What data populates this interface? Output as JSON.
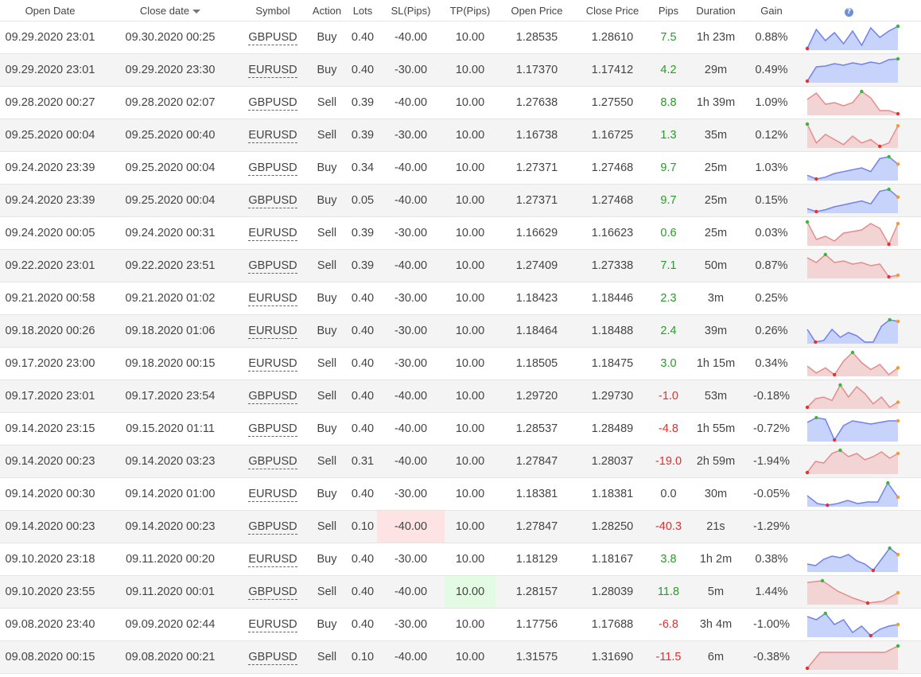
{
  "columns": {
    "open_date": "Open Date",
    "close_date": "Close date",
    "symbol": "Symbol",
    "action": "Action",
    "lots": "Lots",
    "sl": "SL(Pips)",
    "tp": "TP(Pips)",
    "open_price": "Open Price",
    "close_price": "Close Price",
    "pips": "Pips",
    "duration": "Duration",
    "gain": "Gain",
    "help_icon_text": "?"
  },
  "colors": {
    "buy_fill": "#c8d3fb",
    "buy_line": "#6f82ee",
    "sell_fill": "#f2d4d4",
    "sell_line": "#e58c8c",
    "marker_low": "#e83030",
    "marker_high": "#38b838",
    "marker_last": "#f39c2b"
  },
  "rows": [
    {
      "open_date": "09.29.2020 23:01",
      "close_date": "09.30.2020 00:25",
      "symbol": "GBPUSD",
      "action": "Buy",
      "lots": "0.40",
      "sl": "-40.00",
      "tp": "10.00",
      "open_price": "1.28535",
      "close_price": "1.28610",
      "pips": "7.5",
      "duration": "1h 23m",
      "gain": "0.88%",
      "spark": [
        2,
        26,
        12,
        22,
        8,
        24,
        6,
        28,
        16,
        24,
        30
      ]
    },
    {
      "open_date": "09.29.2020 23:01",
      "close_date": "09.29.2020 23:30",
      "symbol": "EURUSD",
      "action": "Buy",
      "lots": "0.40",
      "sl": "-30.00",
      "tp": "10.00",
      "open_price": "1.17370",
      "close_price": "1.17412",
      "pips": "4.2",
      "duration": "29m",
      "gain": "0.49%",
      "spark": [
        2,
        20,
        21,
        24,
        22,
        25,
        23,
        26,
        24,
        29,
        30
      ]
    },
    {
      "open_date": "09.28.2020 00:27",
      "close_date": "09.28.2020 02:07",
      "symbol": "GBPUSD",
      "action": "Sell",
      "lots": "0.39",
      "sl": "-40.00",
      "tp": "10.00",
      "open_price": "1.27638",
      "close_price": "1.27550",
      "pips": "8.8",
      "duration": "1h 39m",
      "gain": "1.09%",
      "spark": [
        20,
        28,
        14,
        16,
        12,
        16,
        30,
        22,
        6,
        6,
        2
      ]
    },
    {
      "open_date": "09.25.2020 00:04",
      "close_date": "09.25.2020 00:40",
      "symbol": "EURUSD",
      "action": "Sell",
      "lots": "0.39",
      "sl": "-30.00",
      "tp": "10.00",
      "open_price": "1.16738",
      "close_price": "1.16725",
      "pips": "1.3",
      "duration": "35m",
      "gain": "0.12%",
      "spark": [
        30,
        8,
        18,
        12,
        6,
        16,
        8,
        12,
        4,
        8,
        28
      ]
    },
    {
      "open_date": "09.24.2020 23:39",
      "close_date": "09.25.2020 00:04",
      "symbol": "GBPUSD",
      "action": "Buy",
      "lots": "0.34",
      "sl": "-40.00",
      "tp": "10.00",
      "open_price": "1.27371",
      "close_price": "1.27468",
      "pips": "9.7",
      "duration": "25m",
      "gain": "1.03%",
      "spark": [
        10,
        6,
        8,
        12,
        14,
        16,
        18,
        14,
        28,
        30,
        22
      ]
    },
    {
      "open_date": "09.24.2020 23:39",
      "close_date": "09.25.2020 00:04",
      "symbol": "GBPUSD",
      "action": "Buy",
      "lots": "0.05",
      "sl": "-40.00",
      "tp": "10.00",
      "open_price": "1.27371",
      "close_price": "1.27468",
      "pips": "9.7",
      "duration": "25m",
      "gain": "0.15%",
      "spark": [
        8,
        5,
        7,
        10,
        12,
        14,
        16,
        13,
        26,
        28,
        20
      ]
    },
    {
      "open_date": "09.24.2020 00:05",
      "close_date": "09.24.2020 00:31",
      "symbol": "EURUSD",
      "action": "Sell",
      "lots": "0.39",
      "sl": "-30.00",
      "tp": "10.00",
      "open_price": "1.16629",
      "close_price": "1.16623",
      "pips": "0.6",
      "duration": "25m",
      "gain": "0.03%",
      "spark": [
        30,
        8,
        12,
        6,
        16,
        18,
        20,
        28,
        22,
        2,
        28
      ]
    },
    {
      "open_date": "09.22.2020 23:01",
      "close_date": "09.22.2020 23:51",
      "symbol": "GBPUSD",
      "action": "Sell",
      "lots": "0.39",
      "sl": "-40.00",
      "tp": "10.00",
      "open_price": "1.27409",
      "close_price": "1.27338",
      "pips": "7.1",
      "duration": "50m",
      "gain": "0.87%",
      "spark": [
        26,
        20,
        30,
        20,
        22,
        18,
        20,
        16,
        18,
        2,
        4
      ]
    },
    {
      "open_date": "09.21.2020 00:58",
      "close_date": "09.21.2020 01:02",
      "symbol": "EURUSD",
      "action": "Buy",
      "lots": "0.40",
      "sl": "-30.00",
      "tp": "10.00",
      "open_price": "1.18423",
      "close_price": "1.18446",
      "pips": "2.3",
      "duration": "3m",
      "gain": "0.25%",
      "spark": []
    },
    {
      "open_date": "09.18.2020 00:26",
      "close_date": "09.18.2020 01:06",
      "symbol": "EURUSD",
      "action": "Buy",
      "lots": "0.40",
      "sl": "-30.00",
      "tp": "10.00",
      "open_price": "1.18464",
      "close_price": "1.18488",
      "pips": "2.4",
      "duration": "39m",
      "gain": "0.26%",
      "spark": [
        18,
        2,
        4,
        18,
        8,
        14,
        10,
        2,
        2,
        22,
        30,
        28
      ]
    },
    {
      "open_date": "09.17.2020 23:00",
      "close_date": "09.18.2020 00:15",
      "symbol": "EURUSD",
      "action": "Sell",
      "lots": "0.40",
      "sl": "-30.00",
      "tp": "10.00",
      "open_price": "1.18505",
      "close_price": "1.18475",
      "pips": "3.0",
      "duration": "1h 15m",
      "gain": "0.34%",
      "spark": [
        14,
        6,
        12,
        4,
        20,
        30,
        18,
        10,
        16,
        4,
        12
      ]
    },
    {
      "open_date": "09.17.2020 23:01",
      "close_date": "09.17.2020 23:54",
      "symbol": "GBPUSD",
      "action": "Sell",
      "lots": "0.40",
      "sl": "-40.00",
      "tp": "10.00",
      "open_price": "1.29720",
      "close_price": "1.29730",
      "pips": "-1.0",
      "duration": "53m",
      "gain": "-0.18%",
      "spark": [
        4,
        14,
        16,
        12,
        30,
        16,
        28,
        20,
        8,
        16,
        4,
        10
      ]
    },
    {
      "open_date": "09.14.2020 23:15",
      "close_date": "09.15.2020 01:11",
      "symbol": "GBPUSD",
      "action": "Buy",
      "lots": "0.40",
      "sl": "-40.00",
      "tp": "10.00",
      "open_price": "1.28537",
      "close_price": "1.28489",
      "pips": "-4.8",
      "duration": "1h 55m",
      "gain": "-0.72%",
      "spark": [
        24,
        30,
        28,
        2,
        20,
        26,
        24,
        22,
        24,
        26,
        26
      ]
    },
    {
      "open_date": "09.14.2020 00:23",
      "close_date": "09.14.2020 03:23",
      "symbol": "GBPUSD",
      "action": "Sell",
      "lots": "0.31",
      "sl": "-40.00",
      "tp": "10.00",
      "open_price": "1.27847",
      "close_price": "1.28037",
      "pips": "-19.0",
      "duration": "2h 59m",
      "gain": "-1.94%",
      "spark": [
        2,
        16,
        14,
        26,
        30,
        22,
        26,
        18,
        22,
        28,
        20,
        26
      ]
    },
    {
      "open_date": "09.14.2020 00:30",
      "close_date": "09.14.2020 01:00",
      "symbol": "EURUSD",
      "action": "Buy",
      "lots": "0.40",
      "sl": "-30.00",
      "tp": "10.00",
      "open_price": "1.18381",
      "close_price": "1.18381",
      "pips": "0.0",
      "duration": "30m",
      "gain": "-0.05%",
      "spark": [
        14,
        4,
        2,
        4,
        8,
        4,
        6,
        6,
        30,
        12
      ]
    },
    {
      "open_date": "09.14.2020 00:23",
      "close_date": "09.14.2020 00:23",
      "symbol": "GBPUSD",
      "action": "Sell",
      "lots": "0.10",
      "sl": "-40.00",
      "tp": "10.00",
      "open_price": "1.27847",
      "close_price": "1.28250",
      "pips": "-40.3",
      "duration": "21s",
      "gain": "-1.29%",
      "spark": [],
      "sl_hit": true
    },
    {
      "open_date": "09.10.2020 23:18",
      "close_date": "09.11.2020 00:20",
      "symbol": "EURUSD",
      "action": "Buy",
      "lots": "0.40",
      "sl": "-30.00",
      "tp": "10.00",
      "open_price": "1.18129",
      "close_price": "1.18167",
      "pips": "3.8",
      "duration": "1h 2m",
      "gain": "0.38%",
      "spark": [
        10,
        8,
        16,
        20,
        18,
        22,
        14,
        10,
        2,
        16,
        30,
        22
      ]
    },
    {
      "open_date": "09.10.2020 23:55",
      "close_date": "09.11.2020 00:01",
      "symbol": "GBPUSD",
      "action": "Sell",
      "lots": "0.40",
      "sl": "-40.00",
      "tp": "10.00",
      "open_price": "1.28157",
      "close_price": "1.28039",
      "pips": "11.8",
      "duration": "5m",
      "gain": "1.44%",
      "spark": [
        26,
        28,
        16,
        8,
        2,
        4,
        14
      ]
    },
    {
      "open_date": "09.08.2020 23:40",
      "close_date": "09.09.2020 02:44",
      "symbol": "EURUSD",
      "action": "Buy",
      "lots": "0.40",
      "sl": "-30.00",
      "tp": "10.00",
      "open_price": "1.17756",
      "close_price": "1.17688",
      "pips": "-6.8",
      "duration": "3h 4m",
      "gain": "-1.00%",
      "spark": [
        26,
        22,
        30,
        16,
        22,
        6,
        14,
        2,
        10,
        14,
        16
      ]
    },
    {
      "open_date": "09.08.2020 00:15",
      "close_date": "09.08.2020 00:21",
      "symbol": "GBPUSD",
      "action": "Sell",
      "lots": "0.10",
      "sl": "-40.00",
      "tp": "10.00",
      "open_price": "1.31575",
      "close_price": "1.31690",
      "pips": "-11.5",
      "duration": "6m",
      "gain": "-0.38%",
      "spark": [
        2,
        22,
        22,
        22,
        22,
        22,
        22,
        30
      ]
    }
  ]
}
